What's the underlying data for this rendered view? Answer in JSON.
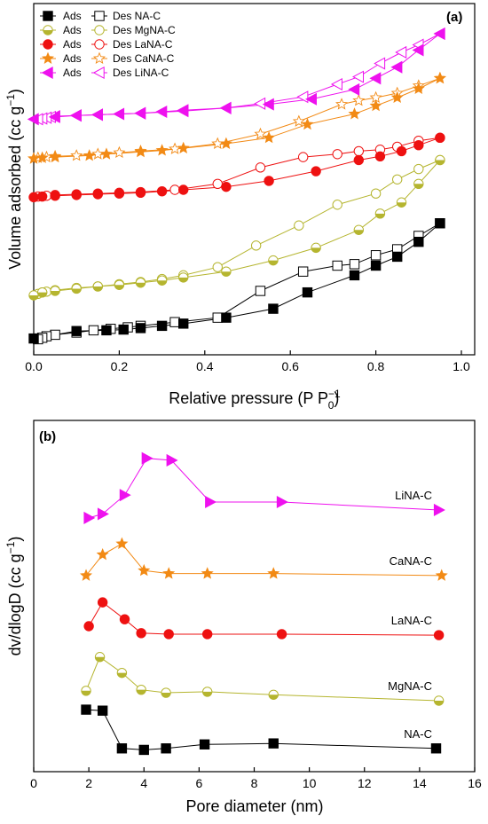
{
  "chart_data": [
    {
      "type": "scatter",
      "panel_label": "(a)",
      "xlabel": "Relative pressure (P P0-1)",
      "ylabel": "Volume adsorbed (cc g-1)",
      "xlim": [
        0,
        1.0
      ],
      "xticks": [
        0.0,
        0.2,
        0.4,
        0.6,
        0.8,
        1.0
      ],
      "xtick_labels": [
        "0.0",
        "0.2",
        "0.4",
        "0.6",
        "0.8",
        "1.0"
      ],
      "yticks_shown": false,
      "legend_position": "top-left",
      "legend": [
        {
          "ads_label": "Ads",
          "des_label": "Des NA-C"
        },
        {
          "ads_label": "Ads",
          "des_label": "Des MgNA-C"
        },
        {
          "ads_label": "Ads",
          "des_label": "Des LaNA-C"
        },
        {
          "ads_label": "Ads",
          "des_label": "Des CaNA-C"
        },
        {
          "ads_label": "Ads",
          "des_label": "Des LiNA-C"
        }
      ],
      "series": [
        {
          "name": "NA-C",
          "color": "#000000",
          "marker": "square",
          "ads": {
            "x": [
              0.0,
              0.1,
              0.17,
              0.21,
              0.25,
              0.3,
              0.35,
              0.45,
              0.56,
              0.64,
              0.75,
              0.8,
              0.85,
              0.9,
              0.95
            ],
            "y": [
              10,
              20,
              21,
              22,
              24,
              27,
              30,
              38,
              50,
              72,
              95,
              108,
              120,
              140,
              165
            ]
          },
          "des": {
            "x": [
              0.95,
              0.9,
              0.85,
              0.8,
              0.75,
              0.71,
              0.63,
              0.53,
              0.43,
              0.33,
              0.25,
              0.22,
              0.18,
              0.14,
              0.1,
              0.05,
              0.03,
              0.02,
              0.01
            ],
            "y": [
              165,
              148,
              130,
              122,
              110,
              108,
              100,
              74,
              38,
              32,
              27,
              25,
              23,
              21,
              18,
              15,
              13,
              11,
              9
            ]
          }
        },
        {
          "name": "MgNA-C",
          "color": "#b5b52f",
          "marker": "circle-half",
          "ads": {
            "x": [
              0.0,
              0.02,
              0.05,
              0.1,
              0.15,
              0.2,
              0.25,
              0.3,
              0.35,
              0.45,
              0.56,
              0.66,
              0.76,
              0.81,
              0.86,
              0.9,
              0.95
            ],
            "y": [
              68,
              72,
              74,
              77,
              80,
              82,
              85,
              88,
              92,
              100,
              115,
              132,
              156,
              178,
              193,
              218,
              250
            ]
          },
          "des": {
            "x": [
              0.95,
              0.9,
              0.85,
              0.8,
              0.71,
              0.62,
              0.52,
              0.43,
              0.35,
              0.3,
              0.25,
              0.2,
              0.15,
              0.1,
              0.05,
              0.03,
              0.02,
              0.01
            ],
            "y": [
              250,
              238,
              224,
              205,
              190,
              162,
              135,
              106,
              95,
              90,
              86,
              83,
              80,
              78,
              75,
              73,
              72,
              70
            ]
          }
        },
        {
          "name": "LaNA-C",
          "color": "#ee1111",
          "marker": "circle",
          "ads": {
            "x": [
              0.0,
              0.02,
              0.05,
              0.1,
              0.15,
              0.2,
              0.25,
              0.3,
              0.35,
              0.45,
              0.55,
              0.66,
              0.76,
              0.81,
              0.86,
              0.9,
              0.95
            ],
            "y": [
              200,
              201,
              202,
              203,
              204,
              205,
              206,
              208,
              210,
              214,
              222,
              235,
              250,
              255,
              262,
              270,
              280
            ]
          },
          "des": {
            "x": [
              0.95,
              0.9,
              0.85,
              0.81,
              0.76,
              0.71,
              0.63,
              0.53,
              0.43,
              0.33,
              0.25,
              0.2,
              0.15,
              0.1,
              0.05,
              0.03,
              0.01
            ],
            "y": [
              280,
              276,
              268,
              264,
              262,
              258,
              254,
              240,
              218,
              210,
              207,
              206,
              205,
              204,
              203,
              202,
              201
            ]
          }
        },
        {
          "name": "CaNA-C",
          "color": "#f28a15",
          "marker": "star",
          "ads": {
            "x": [
              0.0,
              0.02,
              0.05,
              0.13,
              0.17,
              0.25,
              0.3,
              0.35,
              0.45,
              0.55,
              0.64,
              0.75,
              0.8,
              0.85,
              0.9,
              0.95
            ],
            "y": [
              252,
              253,
              254,
              256,
              258,
              261,
              263,
              266,
              272,
              280,
              298,
              312,
              323,
              334,
              346,
              360
            ]
          },
          "des": {
            "x": [
              0.95,
              0.9,
              0.85,
              0.8,
              0.76,
              0.72,
              0.62,
              0.53,
              0.43,
              0.33,
              0.25,
              0.2,
              0.15,
              0.1,
              0.05,
              0.03,
              0.01
            ],
            "y": [
              360,
              350,
              340,
              334,
              330,
              325,
              302,
              285,
              272,
              265,
              262,
              260,
              258,
              256,
              255,
              254,
              253
            ]
          }
        },
        {
          "name": "LiNA-C",
          "color": "#ee11ee",
          "marker": "triangle-left",
          "ads": {
            "x": [
              0.0,
              0.05,
              0.1,
              0.15,
              0.2,
              0.25,
              0.3,
              0.35,
              0.45,
              0.55,
              0.65,
              0.75,
              0.8,
              0.85,
              0.9,
              0.95
            ],
            "y": [
              305,
              308,
              310,
              311,
              312,
              313,
              315,
              317,
              320,
              325,
              332,
              345,
              360,
              375,
              398,
              420
            ]
          },
          "des": {
            "x": [
              0.95,
              0.9,
              0.86,
              0.81,
              0.76,
              0.71,
              0.63,
              0.53,
              0.45,
              0.35,
              0.25,
              0.15,
              0.1,
              0.05,
              0.04,
              0.03,
              0.02,
              0.01
            ],
            "y": [
              420,
              405,
              395,
              380,
              362,
              352,
              335,
              326,
              320,
              316,
              313,
              311,
              310,
              309,
              308,
              307,
              306,
              305
            ]
          }
        }
      ]
    },
    {
      "type": "line",
      "panel_label": "(b)",
      "xlabel": "Pore diameter (nm)",
      "ylabel": "dv/dlogD (cc g-1)",
      "xlim": [
        0,
        16
      ],
      "xticks": [
        0,
        2,
        4,
        6,
        8,
        10,
        12,
        14,
        16
      ],
      "xtick_labels": [
        "0",
        "2",
        "4",
        "6",
        "8",
        "10",
        "12",
        "14",
        "16"
      ],
      "yticks_shown": false,
      "series": [
        {
          "name": "NA-C",
          "color": "#000000",
          "marker": "square",
          "x": [
            1.9,
            2.5,
            3.2,
            4.0,
            4.8,
            6.2,
            8.7,
            14.6
          ],
          "y": [
            4.1,
            4.0,
            0.2,
            0.05,
            0.2,
            0.6,
            0.7,
            0.2
          ]
        },
        {
          "name": "MgNA-C",
          "color": "#b5b52f",
          "marker": "circle-half",
          "x": [
            1.9,
            2.4,
            3.2,
            3.9,
            4.8,
            6.3,
            8.7,
            14.7
          ],
          "y": [
            6.0,
            9.4,
            7.8,
            6.1,
            5.8,
            5.9,
            5.6,
            5.0
          ]
        },
        {
          "name": "LaNA-C",
          "color": "#ee1111",
          "marker": "circle",
          "x": [
            2.0,
            2.5,
            3.3,
            3.9,
            4.9,
            6.3,
            9.0,
            14.7
          ],
          "y": [
            12.5,
            14.9,
            13.2,
            11.8,
            11.7,
            11.7,
            11.7,
            11.6
          ]
        },
        {
          "name": "CaNA-C",
          "color": "#f28a15",
          "marker": "star",
          "x": [
            1.9,
            2.5,
            3.2,
            4.0,
            4.9,
            6.3,
            8.7,
            14.8
          ],
          "y": [
            17.6,
            19.7,
            20.8,
            18.1,
            17.8,
            17.8,
            17.8,
            17.6
          ]
        },
        {
          "name": "LiNA-C",
          "color": "#ee11ee",
          "marker": "triangle-right",
          "x": [
            2.0,
            2.5,
            3.3,
            4.1,
            5.0,
            6.4,
            9.0,
            14.7
          ],
          "y": [
            23.4,
            23.8,
            25.7,
            29.4,
            29.2,
            25.0,
            25.0,
            24.2
          ]
        }
      ]
    }
  ]
}
